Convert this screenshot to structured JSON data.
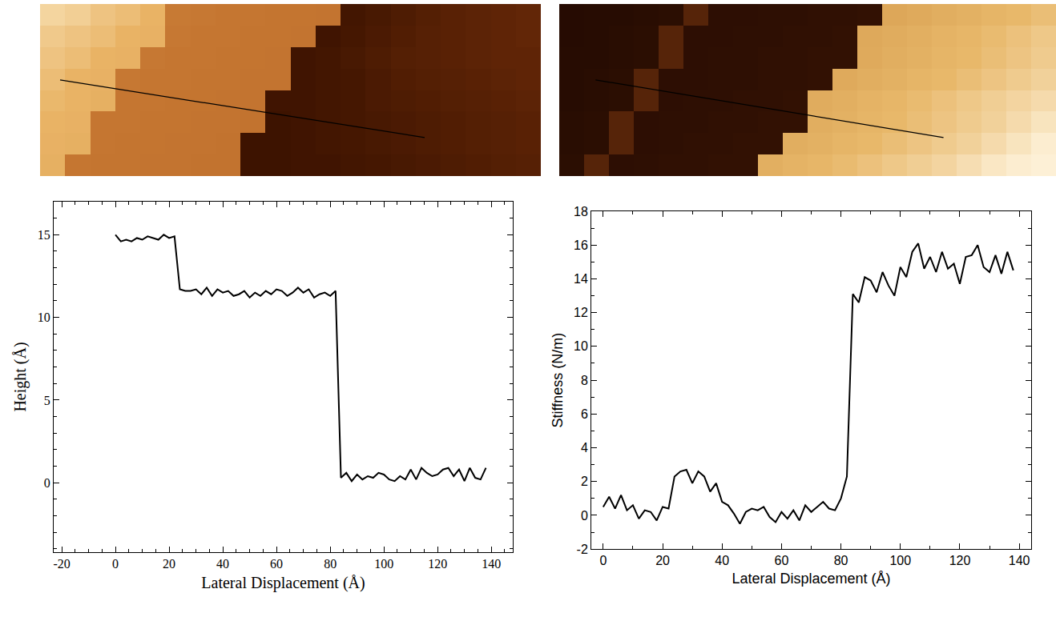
{
  "chart_data": [
    {
      "type": "heatmap",
      "cells": [
        [
          15.6,
          15.5,
          15.3,
          15.2,
          15.0,
          11.8,
          11.7,
          11.6,
          11.6,
          11.5,
          11.5,
          11.4,
          0.2,
          0.4,
          0.6,
          0.8,
          1.0,
          1.1,
          1.2,
          1.3
        ],
        [
          15.4,
          15.3,
          15.2,
          15.0,
          14.9,
          11.7,
          11.6,
          11.6,
          11.5,
          11.5,
          11.4,
          0.1,
          0.3,
          0.5,
          0.7,
          0.9,
          1.0,
          1.1,
          1.2,
          1.3
        ],
        [
          15.3,
          15.2,
          15.0,
          14.9,
          11.7,
          11.6,
          11.6,
          11.5,
          11.5,
          11.4,
          0.1,
          0.2,
          0.4,
          0.6,
          0.8,
          0.9,
          1.0,
          1.1,
          1.2,
          1.2
        ],
        [
          15.2,
          15.0,
          14.9,
          11.7,
          11.6,
          11.6,
          11.5,
          11.5,
          11.4,
          11.4,
          0.1,
          0.2,
          0.3,
          0.5,
          0.7,
          0.8,
          0.9,
          1.0,
          1.1,
          1.2
        ],
        [
          15.1,
          15.0,
          14.8,
          11.6,
          11.6,
          11.5,
          11.5,
          11.4,
          11.4,
          0.1,
          0.1,
          0.2,
          0.3,
          0.5,
          0.6,
          0.7,
          0.8,
          0.9,
          1.0,
          1.1
        ],
        [
          15.0,
          14.9,
          11.6,
          11.6,
          11.5,
          11.5,
          11.4,
          11.4,
          11.3,
          0.0,
          0.1,
          0.2,
          0.3,
          0.4,
          0.5,
          0.6,
          0.7,
          0.8,
          0.9,
          1.0
        ],
        [
          14.9,
          14.8,
          11.6,
          11.5,
          11.5,
          11.4,
          11.4,
          11.3,
          0.0,
          0.0,
          0.1,
          0.2,
          0.3,
          0.4,
          0.5,
          0.6,
          0.7,
          0.8,
          0.9,
          1.0
        ],
        [
          14.8,
          11.6,
          11.5,
          11.5,
          11.4,
          11.4,
          11.3,
          11.3,
          0.0,
          0.0,
          0.1,
          0.1,
          0.2,
          0.3,
          0.4,
          0.5,
          0.6,
          0.7,
          0.8,
          0.9
        ]
      ],
      "zlim": [
        0,
        16
      ],
      "profile_line": {
        "x": [
          0.3,
          14.86
        ],
        "y": [
          3.03,
          5.71
        ],
        "color": "#000000"
      },
      "xlim": [
        -0.5,
        19.5
      ],
      "ylim": [
        7.5,
        -0.5
      ],
      "tick_labels": false,
      "grid": false
    },
    {
      "type": "heatmap",
      "cells": [
        [
          0.0,
          0.1,
          0.1,
          0.2,
          0.3,
          2.0,
          0.4,
          0.4,
          0.5,
          0.5,
          0.6,
          0.6,
          0.7,
          14.2,
          14.4,
          14.6,
          14.8,
          15.0,
          15.2,
          15.4
        ],
        [
          0.0,
          0.1,
          0.2,
          0.3,
          2.0,
          0.4,
          0.4,
          0.5,
          0.5,
          0.6,
          0.6,
          0.7,
          14.3,
          14.5,
          14.7,
          14.9,
          15.1,
          15.3,
          15.5,
          15.7
        ],
        [
          0.1,
          0.1,
          0.2,
          0.3,
          2.0,
          0.4,
          0.5,
          0.5,
          0.6,
          0.6,
          0.7,
          0.7,
          14.4,
          14.6,
          14.8,
          15.0,
          15.2,
          15.4,
          15.6,
          15.8
        ],
        [
          0.1,
          0.2,
          0.3,
          2.0,
          0.4,
          0.4,
          0.5,
          0.5,
          0.6,
          0.6,
          0.7,
          14.4,
          14.6,
          14.8,
          15.0,
          15.2,
          15.4,
          15.6,
          15.8,
          16.0
        ],
        [
          0.1,
          0.2,
          0.3,
          2.0,
          0.4,
          0.5,
          0.5,
          0.6,
          0.6,
          0.7,
          14.5,
          14.7,
          14.9,
          15.1,
          15.3,
          15.5,
          15.7,
          15.9,
          16.1,
          16.3
        ],
        [
          0.2,
          0.3,
          2.0,
          0.4,
          0.5,
          0.5,
          0.6,
          0.6,
          0.7,
          0.7,
          14.6,
          14.8,
          15.0,
          15.2,
          15.4,
          15.6,
          15.8,
          16.0,
          16.3,
          16.6
        ],
        [
          0.2,
          0.3,
          2.0,
          0.4,
          0.5,
          0.6,
          0.6,
          0.7,
          0.7,
          14.6,
          14.8,
          15.0,
          15.2,
          15.4,
          15.6,
          15.8,
          16.0,
          16.3,
          16.6,
          16.9
        ],
        [
          0.3,
          2.0,
          0.4,
          0.5,
          0.6,
          0.6,
          0.7,
          0.7,
          14.7,
          14.9,
          15.1,
          15.3,
          15.5,
          15.7,
          15.9,
          16.1,
          16.4,
          16.7,
          16.9,
          17.0
        ]
      ],
      "zlim": [
        -1,
        17
      ],
      "profile_line": {
        "x": [
          0.96,
          14.97
        ],
        "y": [
          3.03,
          5.71
        ],
        "color": "#000000"
      },
      "xlim": [
        -0.5,
        19.5
      ],
      "ylim": [
        7.5,
        -0.5
      ],
      "tick_labels": false,
      "grid": false
    },
    {
      "type": "line",
      "xlabel": "Lateral Displacement (Å)",
      "ylabel": "Height (Å)",
      "x": [
        0,
        2,
        4,
        6,
        8,
        10,
        12,
        14,
        16,
        18,
        20,
        22,
        24,
        26,
        28,
        30,
        32,
        34,
        36,
        38,
        40,
        42,
        44,
        46,
        48,
        50,
        52,
        54,
        56,
        58,
        60,
        62,
        64,
        66,
        68,
        70,
        72,
        74,
        76,
        78,
        80,
        82,
        84,
        86,
        88,
        90,
        92,
        94,
        96,
        98,
        100,
        102,
        104,
        106,
        108,
        110,
        112,
        114,
        116,
        118,
        120,
        122,
        124,
        126,
        128,
        130,
        132,
        134,
        136,
        138
      ],
      "values": [
        15.0,
        14.6,
        14.7,
        14.6,
        14.8,
        14.7,
        14.9,
        14.8,
        14.7,
        15.0,
        14.8,
        14.9,
        11.7,
        11.6,
        11.6,
        11.7,
        11.4,
        11.8,
        11.3,
        11.7,
        11.5,
        11.6,
        11.3,
        11.4,
        11.6,
        11.2,
        11.5,
        11.3,
        11.6,
        11.4,
        11.7,
        11.6,
        11.3,
        11.5,
        11.8,
        11.5,
        11.7,
        11.2,
        11.4,
        11.5,
        11.3,
        11.6,
        0.3,
        0.6,
        0.1,
        0.5,
        0.2,
        0.4,
        0.3,
        0.6,
        0.5,
        0.2,
        0.1,
        0.4,
        0.2,
        0.8,
        0.2,
        0.9,
        0.6,
        0.4,
        0.5,
        0.8,
        0.9,
        0.4,
        0.8,
        0.1,
        0.9,
        0.3,
        0.2,
        0.9
      ],
      "color": "#000000",
      "xlim": [
        -23,
        148
      ],
      "xticks": [
        -20,
        0,
        20,
        40,
        60,
        80,
        100,
        120,
        140
      ],
      "ylim": [
        -4.2,
        17
      ],
      "yticks": [
        0,
        5,
        10,
        15
      ],
      "grid": false
    },
    {
      "type": "line",
      "xlabel": "Lateral Displacement (Å)",
      "ylabel": "Stiffness (N/m)",
      "x": [
        0,
        2,
        4,
        6,
        8,
        10,
        12,
        14,
        16,
        18,
        20,
        22,
        24,
        26,
        28,
        30,
        32,
        34,
        36,
        38,
        40,
        42,
        44,
        46,
        48,
        50,
        52,
        54,
        56,
        58,
        60,
        62,
        64,
        66,
        68,
        70,
        72,
        74,
        76,
        78,
        80,
        82,
        84,
        86,
        88,
        90,
        92,
        94,
        96,
        98,
        100,
        102,
        104,
        106,
        108,
        110,
        112,
        114,
        116,
        118,
        120,
        122,
        124,
        126,
        128,
        130,
        132,
        134,
        136,
        138
      ],
      "values": [
        0.5,
        1.1,
        0.4,
        1.2,
        0.3,
        0.6,
        -0.2,
        0.3,
        0.2,
        -0.3,
        0.5,
        0.4,
        2.3,
        2.6,
        2.7,
        1.9,
        2.6,
        2.3,
        1.4,
        1.9,
        0.8,
        0.6,
        0.1,
        -0.5,
        0.2,
        0.4,
        0.3,
        0.5,
        -0.1,
        -0.4,
        0.2,
        -0.2,
        0.3,
        -0.3,
        0.6,
        0.2,
        0.5,
        0.8,
        0.4,
        0.3,
        1.0,
        2.3,
        13.1,
        12.6,
        14.1,
        13.9,
        13.2,
        14.4,
        13.6,
        13.0,
        14.7,
        14.1,
        15.6,
        16.1,
        14.6,
        15.3,
        14.4,
        15.6,
        14.6,
        14.9,
        13.7,
        15.3,
        15.4,
        16.0,
        14.7,
        14.4,
        15.4,
        14.3,
        15.6,
        14.5
      ],
      "color": "#000000",
      "xlim": [
        -4,
        144
      ],
      "xticks": [
        0,
        20,
        40,
        60,
        80,
        100,
        120,
        140
      ],
      "ylim": [
        -2,
        18
      ],
      "yticks": [
        -2,
        0,
        2,
        4,
        6,
        8,
        10,
        12,
        14,
        16,
        18
      ],
      "grid": false
    }
  ]
}
